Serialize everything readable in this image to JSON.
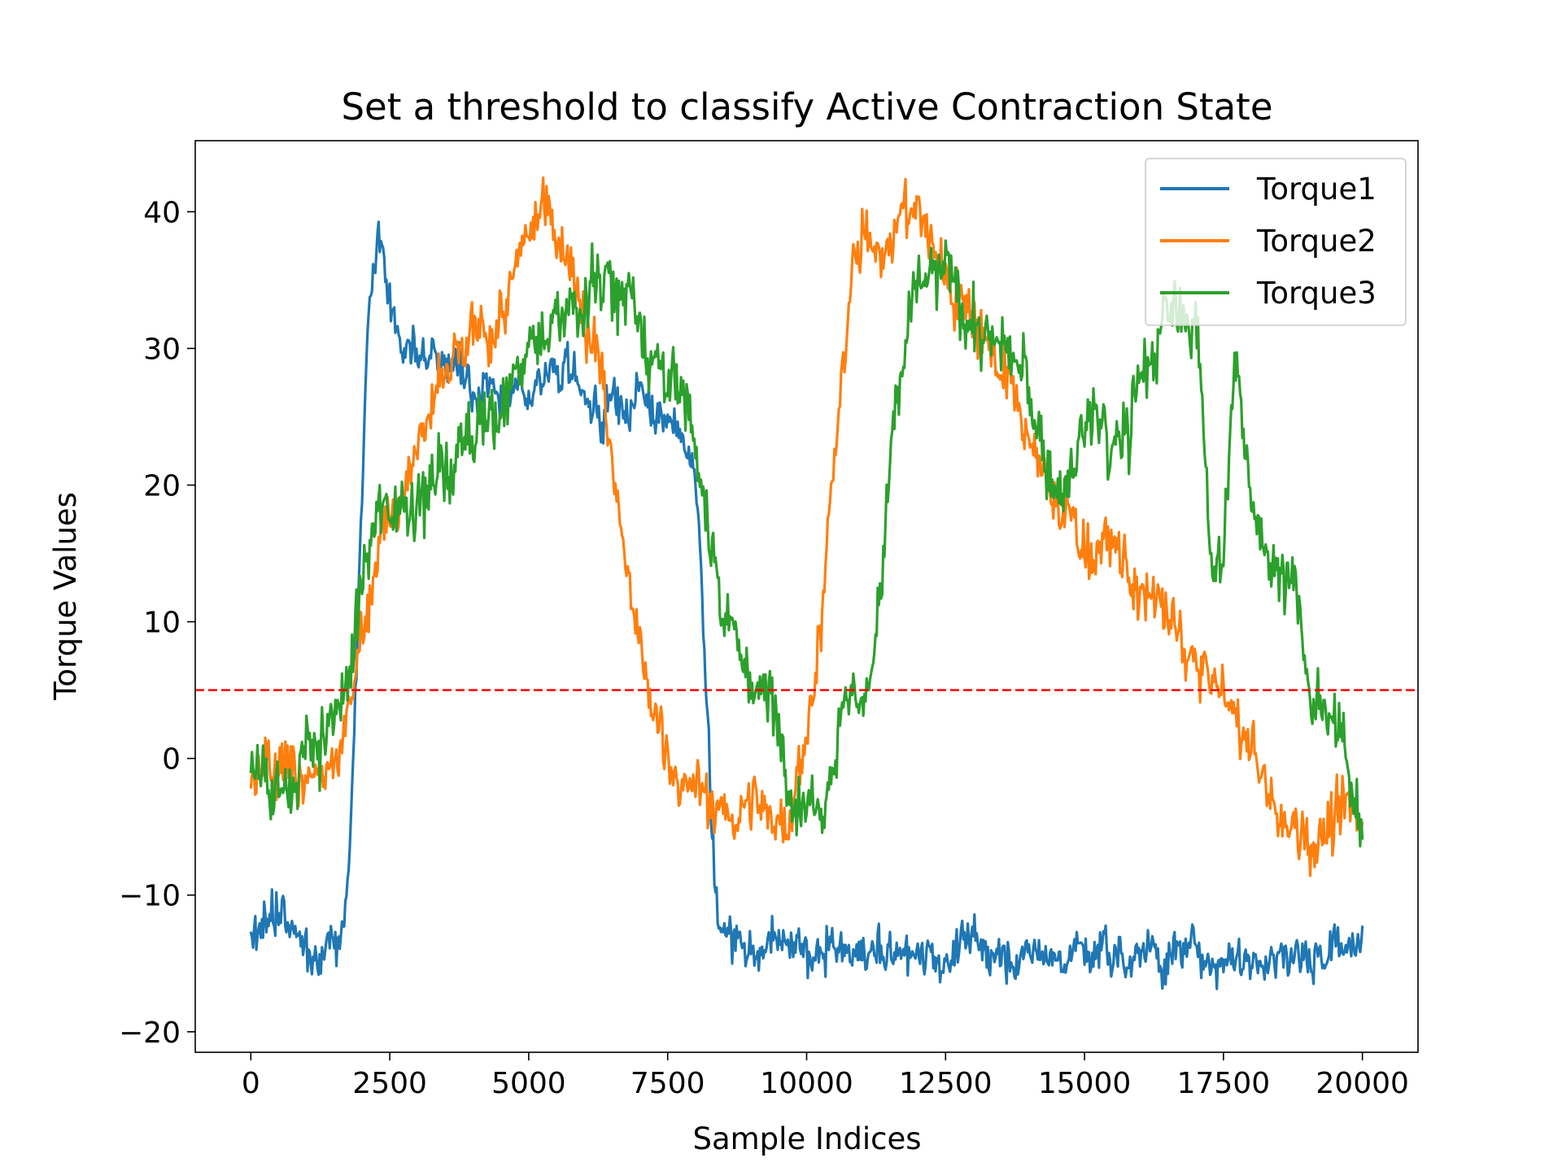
{
  "chart_data": {
    "type": "line",
    "title": "Set a threshold to classify Active Contraction State",
    "xlabel": "Sample Indices",
    "ylabel": "Torque Values",
    "xlim": [
      -1000,
      21000
    ],
    "ylim": [
      -21.5,
      45.2
    ],
    "xticks": [
      0,
      2500,
      5000,
      7500,
      10000,
      12500,
      15000,
      17500,
      20000
    ],
    "xtick_labels": [
      "0",
      "2500",
      "5000",
      "7500",
      "10000",
      "12500",
      "15000",
      "17500",
      "20000"
    ],
    "yticks": [
      -20,
      -10,
      0,
      10,
      20,
      30,
      40
    ],
    "ytick_labels": [
      "−20",
      "−10",
      "0",
      "10",
      "20",
      "30",
      "40"
    ],
    "grid": false,
    "legend": {
      "position": "top-right",
      "entries": [
        "Torque1",
        "Torque2",
        "Torque3"
      ]
    },
    "threshold": {
      "value": 5,
      "color": "#ff0000",
      "style": "dashed"
    },
    "series": [
      {
        "name": "Torque1",
        "color": "#1f77b4",
        "noise": 1.0,
        "x": [
          0,
          500,
          1000,
          1500,
          1700,
          1800,
          1900,
          2000,
          2100,
          2200,
          2300,
          2400,
          2500,
          2700,
          3000,
          3500,
          4000,
          4500,
          5000,
          5500,
          6000,
          6500,
          7000,
          7500,
          7800,
          8000,
          8100,
          8200,
          8300,
          8400,
          8500,
          9000,
          10000,
          11000,
          12000,
          13000,
          14000,
          15000,
          16000,
          17000,
          18000,
          19000,
          20000
        ],
        "y": [
          -12.5,
          -12.8,
          -13,
          -13,
          -11.5,
          -4,
          7,
          20,
          30,
          35,
          37.5,
          37,
          33,
          30,
          29.5,
          30,
          27,
          26,
          27,
          28,
          27,
          26.5,
          26,
          25,
          24,
          20,
          14,
          5,
          -5,
          -11,
          -13,
          -14,
          -14.2,
          -14.5,
          -14,
          -14.2,
          -14,
          -14.3,
          -14,
          -14.2,
          -14.3,
          -14,
          -14
        ]
      },
      {
        "name": "Torque2",
        "color": "#ff7f0e",
        "noise": 1.3,
        "x": [
          0,
          500,
          1000,
          1500,
          1800,
          2000,
          2300,
          2700,
          3000,
          3500,
          4000,
          4500,
          4900,
          5200,
          5400,
          5700,
          6000,
          6300,
          6700,
          7000,
          7200,
          7500,
          8000,
          8500,
          9000,
          9500,
          9700,
          9800,
          10000,
          10300,
          10600,
          10800,
          11000,
          11500,
          12000,
          12500,
          13000,
          13500,
          14000,
          14500,
          15000,
          15500,
          16000,
          16500,
          17000,
          17500,
          18000,
          18500,
          19000,
          19500,
          20000
        ],
        "y": [
          -1,
          -2,
          -2,
          -1,
          5,
          11,
          16,
          20,
          23,
          27,
          30,
          32,
          36,
          40,
          40,
          38,
          33,
          28,
          15,
          7,
          3,
          1,
          -3,
          -4,
          -4,
          -4,
          -4,
          0,
          2,
          12,
          25,
          35,
          37,
          39,
          40,
          35,
          33,
          29,
          22,
          19,
          16,
          15,
          12,
          10,
          7,
          4,
          1,
          -5,
          -5,
          -5,
          -5
        ]
      },
      {
        "name": "Torque3",
        "color": "#2ca02c",
        "noise": 1.5,
        "x": [
          0,
          500,
          1000,
          1500,
          1800,
          2000,
          2300,
          2700,
          3000,
          3500,
          4000,
          4300,
          4500,
          5000,
          5300,
          5500,
          6000,
          6500,
          7000,
          7300,
          7600,
          8000,
          8500,
          9000,
          9500,
          10000,
          10400,
          10600,
          10800,
          11000,
          11200,
          11600,
          11800,
          12000,
          12500,
          13000,
          13500,
          14000,
          14300,
          14600,
          14800,
          15000,
          15200,
          15500,
          15800,
          16000,
          16500,
          17000,
          17300,
          17500,
          17700,
          17900,
          18100,
          18500,
          18800,
          19000,
          19300,
          19700,
          20000
        ],
        "y": [
          -1,
          -1,
          0,
          1,
          6,
          13,
          17,
          18,
          20,
          22,
          24,
          27,
          26,
          30,
          33,
          32,
          34,
          35,
          33,
          30,
          27,
          21,
          12,
          6,
          2,
          -2,
          -1,
          3,
          6,
          3,
          8,
          25,
          31,
          34,
          35,
          32,
          30,
          27,
          21,
          20,
          21,
          24,
          25,
          22,
          24,
          28,
          32,
          32,
          16,
          15,
          30,
          20,
          17,
          15,
          13,
          5,
          2,
          0,
          -3
        ]
      }
    ]
  }
}
